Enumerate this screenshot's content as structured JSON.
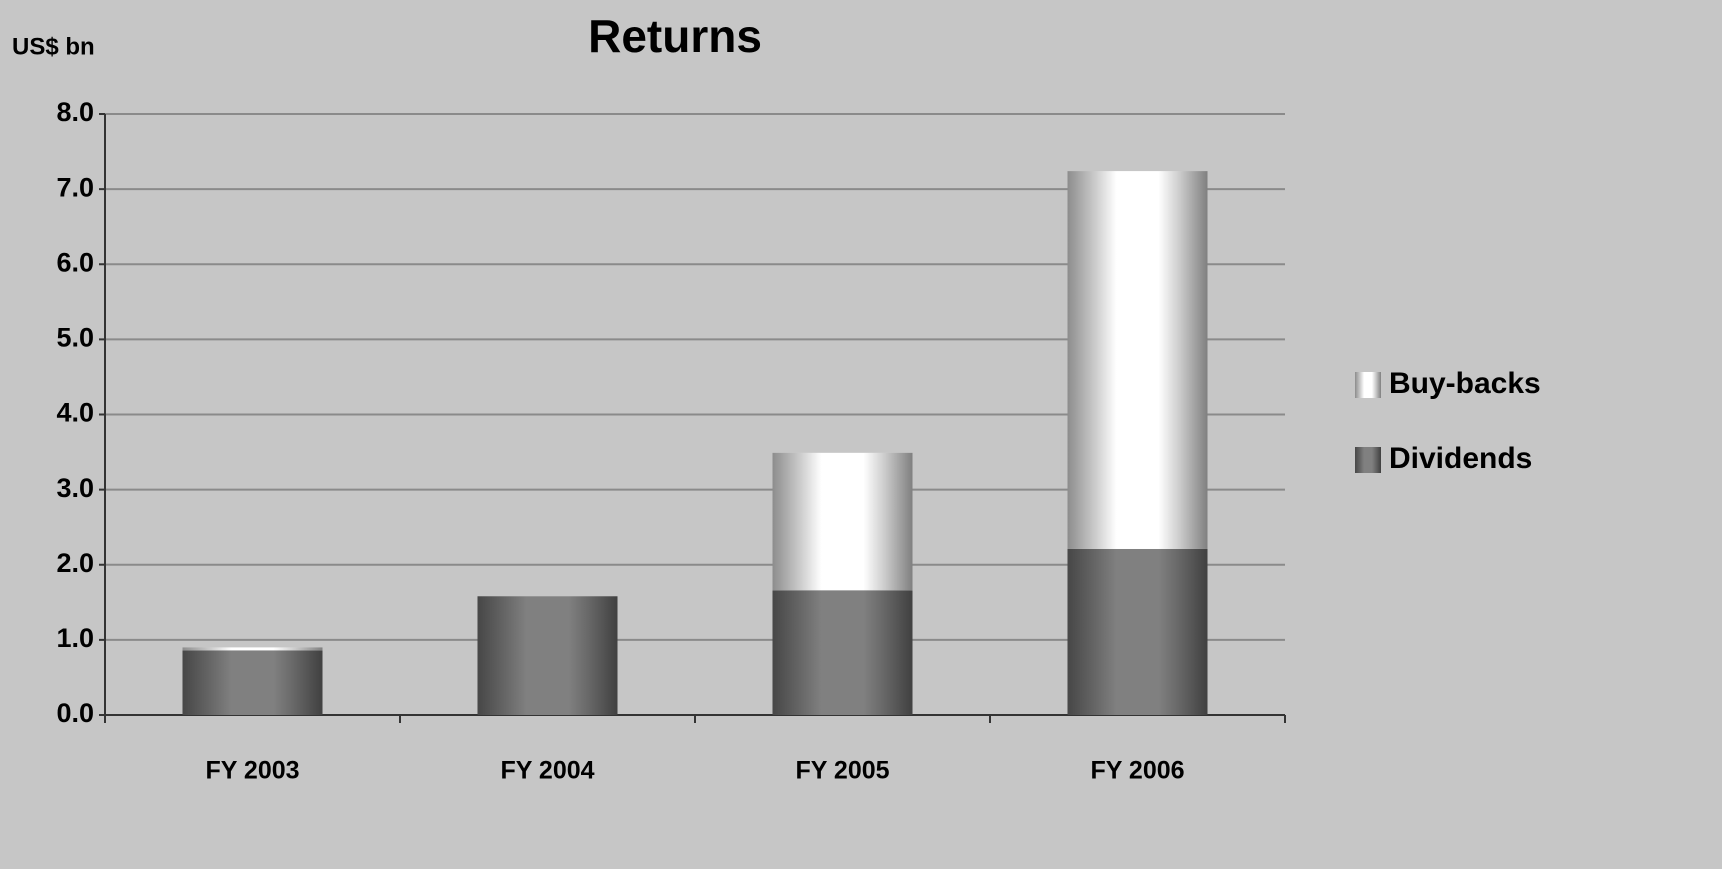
{
  "chart_data": {
    "type": "bar",
    "stacked": true,
    "title": "Returns",
    "y_label": "US$ bn",
    "categories": [
      "FY 2003",
      "FY 2004",
      "FY 2005",
      "FY 2006"
    ],
    "series": [
      {
        "name": "Dividends",
        "color": "#808080",
        "values": [
          0.86,
          1.58,
          1.66,
          2.21
        ]
      },
      {
        "name": "Buy-backs",
        "color": "#ffffff",
        "values": [
          0.04,
          0,
          1.83,
          5.03
        ]
      }
    ],
    "ylim": [
      0,
      8
    ],
    "yticks": [
      {
        "value": 0,
        "label": "0.0"
      },
      {
        "value": 1,
        "label": "1.0"
      },
      {
        "value": 2,
        "label": "2.0"
      },
      {
        "value": 3,
        "label": "3.0"
      },
      {
        "value": 4,
        "label": "4.0"
      },
      {
        "value": 5,
        "label": "5.0"
      },
      {
        "value": 6,
        "label": "6.0"
      },
      {
        "value": 7,
        "label": "7.0"
      },
      {
        "value": 8,
        "label": "8.0"
      }
    ],
    "grid": true,
    "legend": "right"
  }
}
